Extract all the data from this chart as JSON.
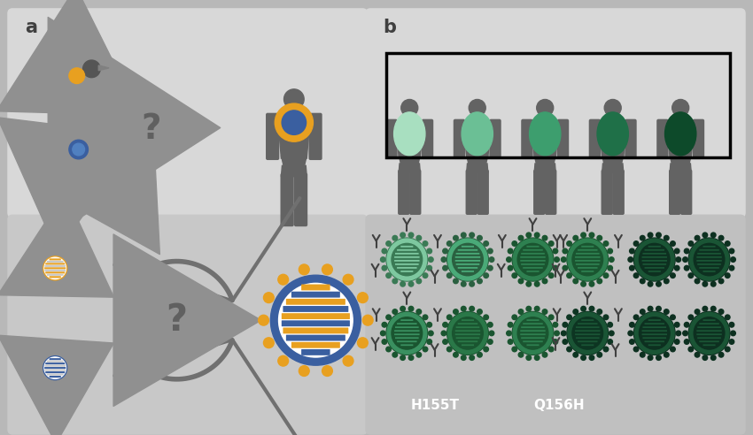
{
  "bg_outer": "#b8b8b8",
  "bg_panel_a_top": "#d8d8d8",
  "bg_panel_a_bot": "#c8c8c8",
  "bg_panel_b_top": "#d8d8d8",
  "bg_panel_b_bot": "#c0c0c0",
  "body_color": "#636363",
  "arrow_color": "#909090",
  "orange": "#E8A020",
  "blue": "#3A5FA0",
  "green_shades": [
    "#a8dfc0",
    "#6bbf95",
    "#3d9e6e",
    "#1f7048",
    "#0d4a2a"
  ],
  "virus_h155t_row1": [
    "#8fd4b0",
    "#4aaa7a"
  ],
  "virus_h155t_row2": [
    "#3a9060",
    "#2a7048"
  ],
  "virus_q156h_row1": [
    "#2e8050",
    "#2e8050"
  ],
  "virus_q156h_row2": [
    "#2e8050",
    "#1a5535"
  ],
  "virus_dark_row1": [
    "#1a5535",
    "#1a5535"
  ],
  "virus_dark_row2": [
    "#1a5535",
    "#1a5535"
  ],
  "spike_h155t": "#2a6040",
  "spike_q156h": "#1a4a28",
  "spike_dark": "#0d3018",
  "text_h155t": "H155T",
  "text_q156h": "Q156H"
}
